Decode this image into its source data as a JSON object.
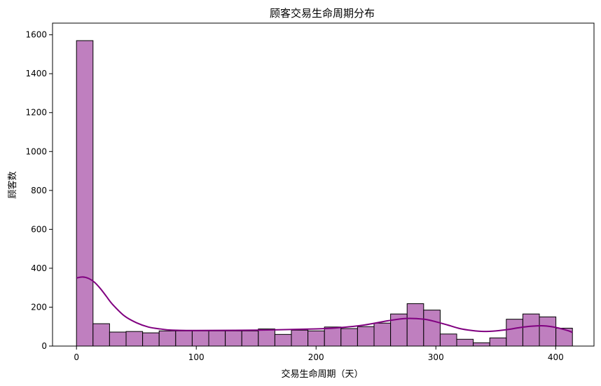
{
  "chart_data": {
    "type": "bar",
    "title": "顾客交易生命周期分布",
    "xlabel": "交易生命周期（天）",
    "ylabel": "顾客数",
    "xlim": [
      -20,
      432
    ],
    "ylim": [
      0,
      1660
    ],
    "xticks": [
      0,
      100,
      200,
      300,
      400
    ],
    "yticks": [
      0,
      200,
      400,
      600,
      800,
      1000,
      1200,
      1400,
      1600
    ],
    "bin_edges": [
      0,
      13.8,
      27.6,
      41.4,
      55.2,
      69.0,
      82.8,
      96.6,
      110.4,
      124.2,
      138.0,
      151.8,
      165.6,
      179.4,
      193.2,
      207.0,
      220.8,
      234.6,
      248.4,
      262.2,
      276.0,
      289.8,
      303.6,
      317.4,
      331.2,
      345.0,
      358.8,
      372.6,
      386.4,
      400.2,
      414.0
    ],
    "counts": [
      1570,
      115,
      72,
      75,
      68,
      78,
      78,
      78,
      78,
      78,
      78,
      88,
      60,
      82,
      78,
      98,
      90,
      100,
      118,
      165,
      218,
      185,
      62,
      35,
      17,
      42,
      138,
      165,
      150,
      92
    ],
    "bar_color": "#bf7fbf",
    "bar_edge": "#000000",
    "kde": {
      "color": "#800080",
      "x": [
        0,
        5,
        10,
        15,
        20,
        25,
        30,
        40,
        50,
        60,
        70,
        80,
        100,
        150,
        200,
        220,
        240,
        260,
        275,
        290,
        300,
        310,
        320,
        330,
        340,
        350,
        360,
        370,
        380,
        390,
        400,
        410,
        414
      ],
      "y": [
        350,
        355,
        348,
        328,
        295,
        255,
        215,
        155,
        120,
        98,
        88,
        82,
        80,
        82,
        88,
        95,
        108,
        130,
        142,
        138,
        125,
        108,
        90,
        80,
        75,
        78,
        85,
        95,
        102,
        104,
        96,
        80,
        70
      ]
    }
  }
}
